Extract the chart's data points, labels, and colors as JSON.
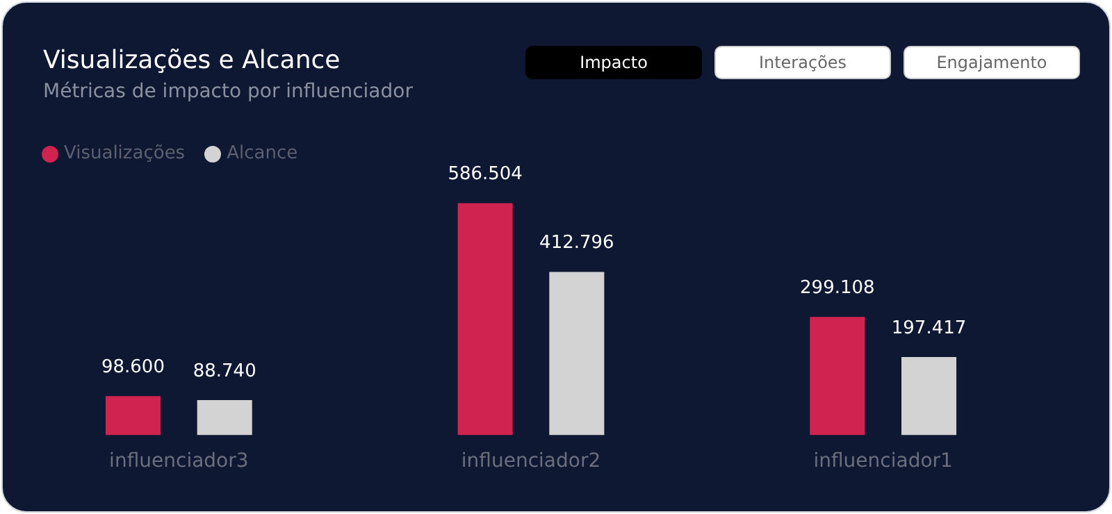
{
  "chart_data": {
    "type": "bar",
    "title": "Visualizações e Alcance",
    "subtitle": "Métricas de impacto por influenciador",
    "annotations": [
      "Impacto",
      "Interações",
      "Engajamento"
    ],
    "categories": [
      "influenciador3",
      "influenciador2",
      "influenciador1"
    ],
    "series": [
      {
        "name": "Visualizações",
        "color": "#d0234f",
        "values": [
          98600,
          586504,
          299108
        ],
        "value_labels": [
          "98.600",
          "586.504",
          "299.108"
        ]
      },
      {
        "name": "Alcance",
        "color": "#d3d3d3",
        "values": [
          88740,
          412796,
          197417
        ],
        "value_labels": [
          "88.740",
          "412.796",
          "197.417"
        ]
      }
    ],
    "tick_labels": "x",
    "legend": "top left",
    "grid": false
  }
}
